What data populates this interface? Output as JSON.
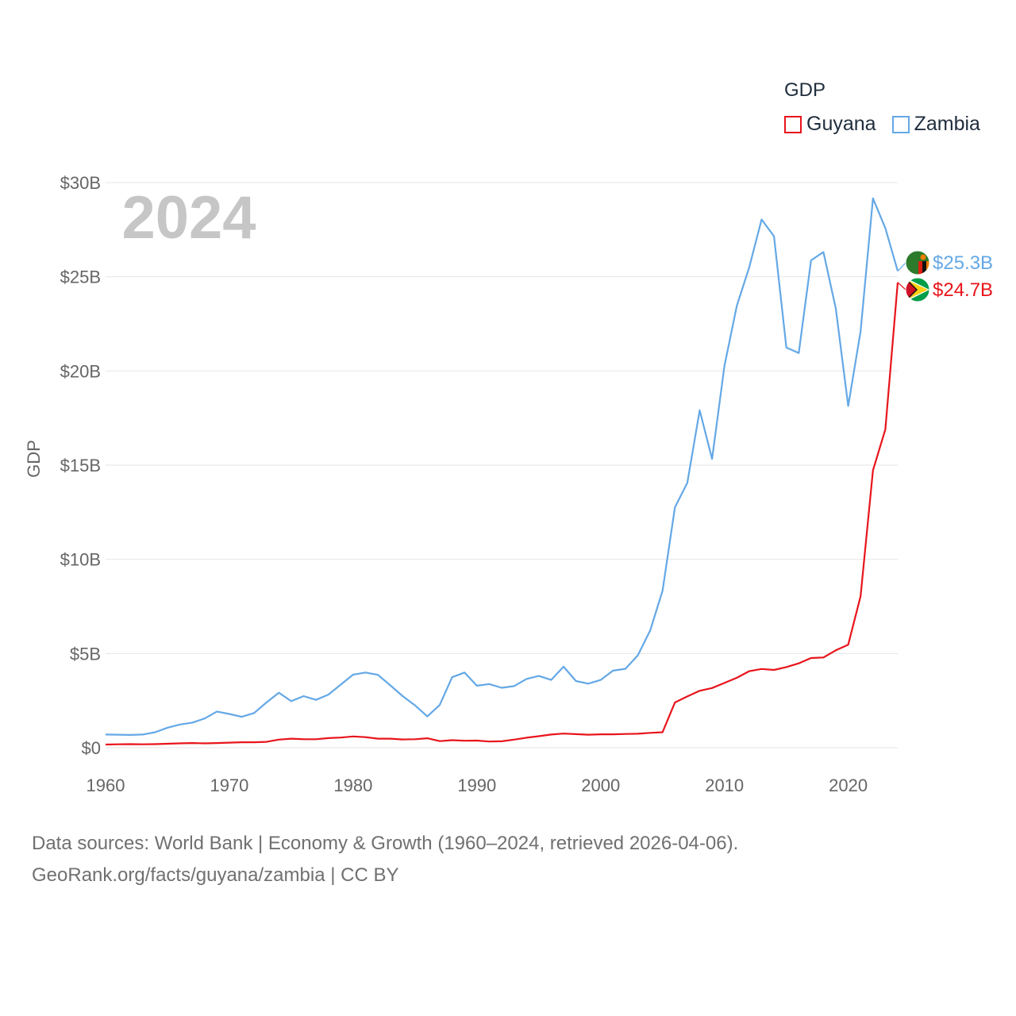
{
  "legend": {
    "title": "GDP",
    "items": [
      {
        "name": "Guyana",
        "color": "#e8141b"
      },
      {
        "name": "Zambia",
        "color": "#64a8e6"
      }
    ]
  },
  "year_label": "2024",
  "footer": {
    "line1": "Data sources: World Bank | Economy & Growth (1960–2024, retrieved 2026-04-06).",
    "line2": "GeoRank.org/facts/guyana/zambia | CC BY"
  },
  "chart_data": {
    "type": "line",
    "title": "GDP",
    "ylabel": "GDP",
    "xlabel": "",
    "xlim": [
      1960,
      2024
    ],
    "ylim": [
      0,
      30
    ],
    "y_unit": "billions USD",
    "x_ticks": [
      1960,
      1970,
      1980,
      1990,
      2000,
      2010,
      2020
    ],
    "x_tick_labels": [
      "1960",
      "1970",
      "1980",
      "1990",
      "2000",
      "2010",
      "2020"
    ],
    "y_ticks": [
      0,
      5,
      10,
      15,
      20,
      25,
      30
    ],
    "y_tick_labels": [
      "$0",
      "$5B",
      "$10B",
      "$15B",
      "$20B",
      "$25B",
      "$30B"
    ],
    "grid": true,
    "legend_position": "top-right",
    "x": [
      1960,
      1961,
      1962,
      1963,
      1964,
      1965,
      1966,
      1967,
      1968,
      1969,
      1970,
      1971,
      1972,
      1973,
      1974,
      1975,
      1976,
      1977,
      1978,
      1979,
      1980,
      1981,
      1982,
      1983,
      1984,
      1985,
      1986,
      1987,
      1988,
      1989,
      1990,
      1991,
      1992,
      1993,
      1994,
      1995,
      1996,
      1997,
      1998,
      1999,
      2000,
      2001,
      2002,
      2003,
      2004,
      2005,
      2006,
      2007,
      2008,
      2009,
      2010,
      2011,
      2012,
      2013,
      2014,
      2015,
      2016,
      2017,
      2018,
      2019,
      2020,
      2021,
      2022,
      2023,
      2024
    ],
    "series": [
      {
        "name": "Zambia",
        "color": "#64a8e6",
        "end_label": "$25.3B",
        "flag": "zambia-flag",
        "values": [
          0.7,
          0.69,
          0.68,
          0.7,
          0.82,
          1.06,
          1.23,
          1.33,
          1.55,
          1.92,
          1.79,
          1.64,
          1.84,
          2.4,
          2.92,
          2.47,
          2.74,
          2.54,
          2.82,
          3.35,
          3.88,
          3.99,
          3.87,
          3.31,
          2.74,
          2.25,
          1.66,
          2.27,
          3.74,
          3.99,
          3.29,
          3.38,
          3.18,
          3.27,
          3.65,
          3.81,
          3.6,
          4.3,
          3.54,
          3.4,
          3.6,
          4.09,
          4.19,
          4.9,
          6.22,
          8.33,
          12.76,
          14.06,
          17.91,
          15.33,
          20.27,
          23.46,
          25.5,
          28.04,
          27.15,
          21.24,
          20.95,
          25.87,
          26.31,
          23.31,
          18.14,
          22.1,
          29.16,
          27.58,
          25.3
        ]
      },
      {
        "name": "Guyana",
        "color": "#e8141b",
        "end_label": "$24.7B",
        "flag": "guyana-flag",
        "values": [
          0.17,
          0.18,
          0.19,
          0.18,
          0.19,
          0.21,
          0.23,
          0.25,
          0.23,
          0.25,
          0.27,
          0.29,
          0.29,
          0.31,
          0.43,
          0.48,
          0.45,
          0.45,
          0.51,
          0.54,
          0.6,
          0.56,
          0.48,
          0.48,
          0.44,
          0.45,
          0.5,
          0.35,
          0.4,
          0.37,
          0.38,
          0.33,
          0.34,
          0.43,
          0.53,
          0.61,
          0.7,
          0.75,
          0.72,
          0.69,
          0.71,
          0.71,
          0.73,
          0.74,
          0.79,
          0.82,
          2.4,
          2.72,
          3.02,
          3.17,
          3.44,
          3.71,
          4.06,
          4.18,
          4.13,
          4.28,
          4.48,
          4.76,
          4.79,
          5.17,
          5.47,
          8.04,
          14.72,
          16.9,
          24.7
        ]
      }
    ]
  }
}
